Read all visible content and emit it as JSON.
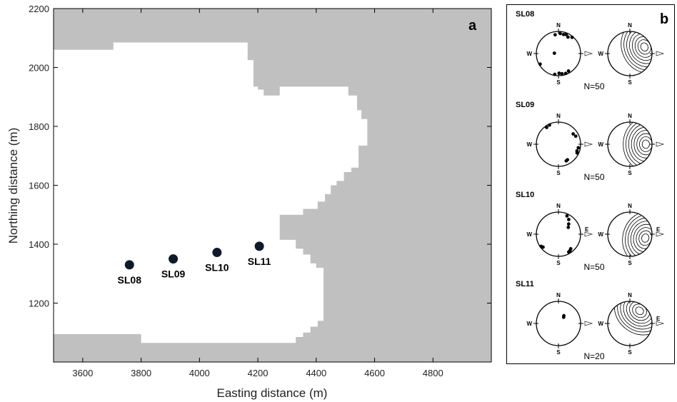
{
  "chart_data": [
    {
      "panel": "a",
      "type": "scatter",
      "xlabel": "Easting distance (m)",
      "ylabel": "Northing distance (m)",
      "xlim": [
        3500,
        5000
      ],
      "ylim": [
        1000,
        2200
      ],
      "xticks": [
        3600,
        3800,
        4000,
        4200,
        4400,
        4600,
        4800
      ],
      "yticks": [
        1200,
        1400,
        1600,
        1800,
        2000,
        2200
      ],
      "grid": false,
      "background_color": "#c0c0c0",
      "region_color": "#ffffff",
      "region_boundary": [
        [
          3500,
          2060
        ],
        [
          3705,
          2060
        ],
        [
          3705,
          2085
        ],
        [
          4165,
          2085
        ],
        [
          4165,
          2025
        ],
        [
          4185,
          2025
        ],
        [
          4185,
          1935
        ],
        [
          4200,
          1935
        ],
        [
          4200,
          1925
        ],
        [
          4220,
          1925
        ],
        [
          4220,
          1905
        ],
        [
          4275,
          1905
        ],
        [
          4275,
          1935
        ],
        [
          4510,
          1935
        ],
        [
          4510,
          1905
        ],
        [
          4540,
          1905
        ],
        [
          4540,
          1855
        ],
        [
          4555,
          1855
        ],
        [
          4555,
          1825
        ],
        [
          4575,
          1825
        ],
        [
          4575,
          1735
        ],
        [
          4545,
          1735
        ],
        [
          4545,
          1660
        ],
        [
          4520,
          1660
        ],
        [
          4520,
          1645
        ],
        [
          4495,
          1645
        ],
        [
          4495,
          1615
        ],
        [
          4470,
          1615
        ],
        [
          4470,
          1600
        ],
        [
          4450,
          1600
        ],
        [
          4450,
          1570
        ],
        [
          4430,
          1570
        ],
        [
          4430,
          1545
        ],
        [
          4405,
          1545
        ],
        [
          4405,
          1520
        ],
        [
          4355,
          1520
        ],
        [
          4355,
          1500
        ],
        [
          4275,
          1500
        ],
        [
          4275,
          1415
        ],
        [
          4330,
          1415
        ],
        [
          4330,
          1385
        ],
        [
          4355,
          1385
        ],
        [
          4355,
          1365
        ],
        [
          4380,
          1365
        ],
        [
          4380,
          1335
        ],
        [
          4400,
          1335
        ],
        [
          4400,
          1320
        ],
        [
          4425,
          1320
        ],
        [
          4425,
          1140
        ],
        [
          4405,
          1140
        ],
        [
          4405,
          1120
        ],
        [
          4380,
          1120
        ],
        [
          4380,
          1100
        ],
        [
          4355,
          1100
        ],
        [
          4355,
          1085
        ],
        [
          4330,
          1085
        ],
        [
          4330,
          1065
        ],
        [
          3800,
          1065
        ],
        [
          3800,
          1095
        ],
        [
          3500,
          1095
        ]
      ],
      "points": [
        {
          "label": "SL08",
          "x": 3760,
          "y": 1330
        },
        {
          "label": "SL09",
          "x": 3910,
          "y": 1350
        },
        {
          "label": "SL10",
          "x": 4060,
          "y": 1372
        },
        {
          "label": "SL11",
          "x": 4205,
          "y": 1393
        }
      ],
      "marker_color": "#0d1a2b",
      "panel_label": "a"
    },
    {
      "panel": "b",
      "type": "stereonet",
      "panel_label": "b",
      "rows": [
        {
          "well": "SL08",
          "n_text": "N=50",
          "east_label_poles": "",
          "east_label_contours": "",
          "poles": [
            [
              350,
              15
            ],
            [
              5,
              10
            ],
            [
              15,
              12
            ],
            [
              22,
              8
            ],
            [
              30,
              15
            ],
            [
              40,
              5
            ],
            [
              150,
              10
            ],
            [
              160,
              5
            ],
            [
              170,
              8
            ],
            [
              178,
              12
            ],
            [
              190,
              5
            ],
            [
              240,
              5
            ],
            [
              275,
              75
            ]
          ]
        },
        {
          "well": "SL09",
          "n_text": "N=50",
          "east_label_poles": "",
          "east_label_contours": "",
          "poles": [
            [
              325,
              8
            ],
            [
              335,
              5
            ],
            [
              55,
              20
            ],
            [
              65,
              15
            ],
            [
              100,
              10
            ],
            [
              110,
              12
            ],
            [
              115,
              8
            ],
            [
              150,
              20
            ],
            [
              155,
              18
            ]
          ]
        },
        {
          "well": "SL10",
          "n_text": "N=50",
          "east_label_poles": "E",
          "east_label_contours": "E",
          "poles": [
            [
              25,
              10
            ],
            [
              35,
              20
            ],
            [
              45,
              35
            ],
            [
              55,
              45
            ],
            [
              140,
              15
            ],
            [
              145,
              10
            ],
            [
              150,
              8
            ],
            [
              230,
              10
            ],
            [
              235,
              5
            ]
          ]
        },
        {
          "well": "SL11",
          "n_text": "N=20",
          "east_label_poles": "",
          "east_label_contours": "E",
          "poles": [
            [
              35,
              55
            ],
            [
              40,
              60
            ]
          ]
        }
      ],
      "direction_labels": {
        "north": "N",
        "south": "S",
        "west": "W"
      }
    }
  ]
}
